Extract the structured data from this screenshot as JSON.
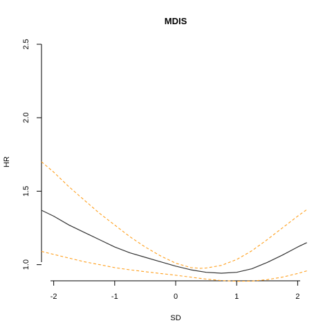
{
  "chart_data": {
    "type": "line",
    "title": "MDIS",
    "xlabel": "SD",
    "ylabel": "HR",
    "xlim": [
      -2.2,
      2.2
    ],
    "ylim": [
      0.89,
      2.5
    ],
    "x_ticks": [
      -2,
      -1,
      0,
      1,
      2
    ],
    "x_tick_labels": [
      "-2",
      "-1",
      "0",
      "1",
      "2"
    ],
    "y_ticks": [
      1.0,
      1.5,
      2.0,
      2.5
    ],
    "y_tick_labels": [
      "1.0",
      "1.5",
      "2.0",
      "2.5"
    ],
    "grid": false,
    "legend": "none",
    "series": [
      {
        "style": "solid",
        "color": "#333333",
        "x": [
          -2.2,
          -2.0,
          -1.75,
          -1.5,
          -1.25,
          -1.0,
          -0.75,
          -0.5,
          -0.25,
          0.0,
          0.25,
          0.5,
          0.75,
          1.0,
          1.25,
          1.5,
          1.75,
          2.0,
          2.15
        ],
        "y": [
          1.37,
          1.33,
          1.27,
          1.22,
          1.17,
          1.12,
          1.08,
          1.05,
          1.02,
          0.99,
          0.965,
          0.948,
          0.942,
          0.948,
          0.972,
          1.015,
          1.065,
          1.12,
          1.15
        ]
      },
      {
        "style": "dashed",
        "color": "#FF9F1C",
        "x": [
          -2.2,
          -2.0,
          -1.75,
          -1.5,
          -1.25,
          -1.0,
          -0.75,
          -0.5,
          -0.25,
          0.0,
          0.25,
          0.4,
          0.5,
          0.75,
          1.0,
          1.25,
          1.5,
          1.75,
          2.0,
          2.15
        ],
        "y": [
          1.7,
          1.63,
          1.53,
          1.44,
          1.35,
          1.27,
          1.19,
          1.12,
          1.06,
          1.01,
          0.98,
          0.975,
          0.977,
          0.995,
          1.035,
          1.095,
          1.17,
          1.25,
          1.33,
          1.375
        ]
      },
      {
        "style": "dashed",
        "color": "#FF9F1C",
        "x": [
          -2.2,
          -2.0,
          -1.75,
          -1.5,
          -1.25,
          -1.0,
          -0.75,
          -0.5,
          -0.25,
          0.0,
          0.25,
          0.5,
          0.75,
          1.0,
          1.25,
          1.5,
          1.75,
          2.0,
          2.15
        ],
        "y": [
          1.09,
          1.07,
          1.045,
          1.02,
          1.0,
          0.98,
          0.965,
          0.952,
          0.94,
          0.928,
          0.915,
          0.902,
          0.892,
          0.887,
          0.888,
          0.898,
          0.915,
          0.94,
          0.958
        ]
      }
    ]
  }
}
